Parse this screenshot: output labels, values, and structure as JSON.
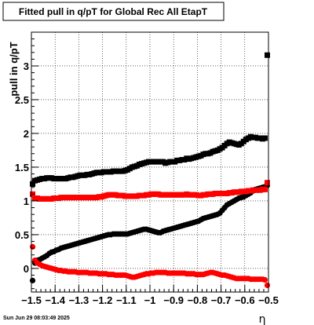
{
  "chart_data": {
    "type": "scatter",
    "title": "Fitted pull in q/pT for Global Rec All EtapT",
    "ylabel": "pull in q/pT",
    "xlabel": "η",
    "xlim": [
      -1.5,
      -0.5
    ],
    "ylim": [
      -0.35,
      3.5
    ],
    "x_ticks": [
      -1.5,
      -1.4,
      -1.3,
      -1.2,
      -1.1,
      -1,
      -0.9,
      -0.8,
      -0.7,
      -0.6,
      -0.5
    ],
    "x_tick_labels": [
      "−1.5",
      "−1.4",
      "−1.3",
      "−1.2",
      "−1.1",
      "−1",
      "−0.9",
      "−0.8",
      "−0.7",
      "−0.6",
      "−0.5"
    ],
    "y_ticks": [
      0,
      0.5,
      1,
      1.5,
      2,
      2.5,
      3
    ],
    "y_tick_labels": [
      "0",
      "0.5",
      "1",
      "1.5",
      "2",
      "2.5",
      "3"
    ],
    "grid": true,
    "series": [
      {
        "marker": "square",
        "color": "#000000",
        "x": [
          -1.495,
          -1.485,
          -1.475,
          -1.465,
          -1.455,
          -1.445,
          -1.435,
          -1.425,
          -1.415,
          -1.405,
          -1.395,
          -1.385,
          -1.375,
          -1.365,
          -1.355,
          -1.345,
          -1.335,
          -1.325,
          -1.315,
          -1.305,
          -1.295,
          -1.285,
          -1.275,
          -1.265,
          -1.255,
          -1.245,
          -1.235,
          -1.225,
          -1.215,
          -1.205,
          -1.195,
          -1.185,
          -1.175,
          -1.165,
          -1.155,
          -1.145,
          -1.135,
          -1.125,
          -1.115,
          -1.105,
          -1.095,
          -1.085,
          -1.075,
          -1.065,
          -1.055,
          -1.045,
          -1.035,
          -1.025,
          -1.015,
          -1.005,
          -0.995,
          -0.985,
          -0.975,
          -0.965,
          -0.955,
          -0.945,
          -0.935,
          -0.925,
          -0.915,
          -0.905,
          -0.895,
          -0.885,
          -0.875,
          -0.865,
          -0.855,
          -0.845,
          -0.835,
          -0.825,
          -0.815,
          -0.805,
          -0.795,
          -0.785,
          -0.775,
          -0.765,
          -0.755,
          -0.745,
          -0.735,
          -0.725,
          -0.715,
          -0.705,
          -0.695,
          -0.685,
          -0.675,
          -0.665,
          -0.655,
          -0.645,
          -0.635,
          -0.625,
          -0.615,
          -0.605,
          -0.595,
          -0.585,
          -0.575,
          -0.565,
          -0.555,
          -0.545,
          -0.535,
          -0.525,
          -0.515,
          -0.505
        ],
        "y": [
          1.25,
          1.3,
          1.31,
          1.32,
          1.33,
          1.33,
          1.34,
          1.34,
          1.34,
          1.33,
          1.33,
          1.33,
          1.33,
          1.33,
          1.33,
          1.34,
          1.35,
          1.35,
          1.36,
          1.37,
          1.38,
          1.38,
          1.38,
          1.39,
          1.39,
          1.4,
          1.41,
          1.42,
          1.42,
          1.42,
          1.43,
          1.43,
          1.43,
          1.43,
          1.44,
          1.44,
          1.44,
          1.44,
          1.44,
          1.45,
          1.46,
          1.48,
          1.5,
          1.51,
          1.52,
          1.54,
          1.55,
          1.56,
          1.57,
          1.58,
          1.58,
          1.58,
          1.58,
          1.58,
          1.58,
          1.58,
          1.56,
          1.57,
          1.58,
          1.58,
          1.58,
          1.6,
          1.6,
          1.61,
          1.61,
          1.63,
          1.62,
          1.63,
          1.64,
          1.65,
          1.66,
          1.67,
          1.69,
          1.7,
          1.7,
          1.71,
          1.73,
          1.74,
          1.75,
          1.77,
          1.79,
          1.82,
          1.85,
          1.87,
          1.86,
          1.85,
          1.84,
          1.83,
          1.85,
          1.88,
          1.91,
          1.93,
          1.95,
          1.94,
          1.94,
          1.93,
          1.93,
          1.92,
          1.93,
          3.16
        ]
      },
      {
        "marker": "circle",
        "color": "#000000",
        "x": [
          -1.495,
          -1.485,
          -1.475,
          -1.465,
          -1.455,
          -1.445,
          -1.435,
          -1.425,
          -1.415,
          -1.405,
          -1.395,
          -1.385,
          -1.375,
          -1.365,
          -1.355,
          -1.345,
          -1.335,
          -1.325,
          -1.315,
          -1.305,
          -1.295,
          -1.285,
          -1.275,
          -1.265,
          -1.255,
          -1.245,
          -1.235,
          -1.225,
          -1.215,
          -1.205,
          -1.195,
          -1.185,
          -1.175,
          -1.165,
          -1.155,
          -1.145,
          -1.135,
          -1.125,
          -1.115,
          -1.105,
          -1.095,
          -1.085,
          -1.075,
          -1.065,
          -1.055,
          -1.045,
          -1.035,
          -1.025,
          -1.015,
          -1.005,
          -0.995,
          -0.985,
          -0.975,
          -0.965,
          -0.955,
          -0.945,
          -0.935,
          -0.925,
          -0.915,
          -0.905,
          -0.895,
          -0.885,
          -0.875,
          -0.865,
          -0.855,
          -0.845,
          -0.835,
          -0.825,
          -0.815,
          -0.805,
          -0.795,
          -0.785,
          -0.775,
          -0.765,
          -0.755,
          -0.745,
          -0.735,
          -0.725,
          -0.715,
          -0.705,
          -0.695,
          -0.685,
          -0.675,
          -0.665,
          -0.655,
          -0.645,
          -0.635,
          -0.625,
          -0.615,
          -0.605,
          -0.595,
          -0.585,
          -0.575,
          -0.565,
          -0.555,
          -0.545,
          -0.535,
          -0.525,
          -0.515,
          -0.505
        ],
        "y": [
          -0.18,
          0.08,
          0.12,
          0.13,
          0.15,
          0.17,
          0.19,
          0.22,
          0.24,
          0.25,
          0.27,
          0.28,
          0.3,
          0.31,
          0.32,
          0.33,
          0.34,
          0.35,
          0.36,
          0.37,
          0.38,
          0.39,
          0.4,
          0.41,
          0.42,
          0.43,
          0.44,
          0.45,
          0.46,
          0.47,
          0.48,
          0.49,
          0.5,
          0.5,
          0.51,
          0.51,
          0.51,
          0.51,
          0.51,
          0.51,
          0.51,
          0.52,
          0.53,
          0.54,
          0.55,
          0.56,
          0.57,
          0.58,
          0.58,
          0.57,
          0.56,
          0.55,
          0.54,
          0.53,
          0.53,
          0.55,
          0.56,
          0.57,
          0.58,
          0.59,
          0.6,
          0.61,
          0.62,
          0.63,
          0.64,
          0.65,
          0.66,
          0.67,
          0.68,
          0.69,
          0.7,
          0.72,
          0.74,
          0.75,
          0.76,
          0.77,
          0.78,
          0.79,
          0.8,
          0.82,
          0.86,
          0.9,
          0.94,
          0.96,
          0.98,
          1.0,
          1.02,
          1.04,
          1.05,
          1.06,
          1.08,
          1.1,
          1.12,
          1.15,
          1.17,
          1.18,
          1.19,
          1.2,
          1.21,
          1.23
        ]
      },
      {
        "marker": "square",
        "color": "#ff0000",
        "x": [
          -1.495,
          -1.485,
          -1.475,
          -1.465,
          -1.455,
          -1.445,
          -1.435,
          -1.425,
          -1.415,
          -1.405,
          -1.395,
          -1.385,
          -1.375,
          -1.365,
          -1.355,
          -1.345,
          -1.335,
          -1.325,
          -1.315,
          -1.305,
          -1.295,
          -1.285,
          -1.275,
          -1.265,
          -1.255,
          -1.245,
          -1.235,
          -1.225,
          -1.215,
          -1.205,
          -1.195,
          -1.185,
          -1.175,
          -1.165,
          -1.155,
          -1.145,
          -1.135,
          -1.125,
          -1.115,
          -1.105,
          -1.095,
          -1.085,
          -1.075,
          -1.065,
          -1.055,
          -1.045,
          -1.035,
          -1.025,
          -1.015,
          -1.005,
          -0.995,
          -0.985,
          -0.975,
          -0.965,
          -0.955,
          -0.945,
          -0.935,
          -0.925,
          -0.915,
          -0.905,
          -0.895,
          -0.885,
          -0.875,
          -0.865,
          -0.855,
          -0.845,
          -0.835,
          -0.825,
          -0.815,
          -0.805,
          -0.795,
          -0.785,
          -0.775,
          -0.765,
          -0.755,
          -0.745,
          -0.735,
          -0.725,
          -0.715,
          -0.705,
          -0.695,
          -0.685,
          -0.675,
          -0.665,
          -0.655,
          -0.645,
          -0.635,
          -0.625,
          -0.615,
          -0.605,
          -0.595,
          -0.585,
          -0.575,
          -0.565,
          -0.555,
          -0.545,
          -0.535,
          -0.525,
          -0.515,
          -0.505
        ],
        "y": [
          1.1,
          1.04,
          1.04,
          1.03,
          1.03,
          1.03,
          1.03,
          1.03,
          1.03,
          1.04,
          1.04,
          1.04,
          1.05,
          1.05,
          1.05,
          1.05,
          1.05,
          1.05,
          1.05,
          1.05,
          1.05,
          1.05,
          1.05,
          1.05,
          1.05,
          1.05,
          1.05,
          1.05,
          1.06,
          1.06,
          1.07,
          1.08,
          1.09,
          1.09,
          1.09,
          1.09,
          1.08,
          1.08,
          1.08,
          1.07,
          1.07,
          1.07,
          1.07,
          1.07,
          1.07,
          1.08,
          1.08,
          1.08,
          1.09,
          1.09,
          1.1,
          1.1,
          1.1,
          1.1,
          1.09,
          1.09,
          1.09,
          1.09,
          1.09,
          1.09,
          1.09,
          1.09,
          1.09,
          1.09,
          1.09,
          1.1,
          1.09,
          1.09,
          1.09,
          1.09,
          1.08,
          1.08,
          1.09,
          1.09,
          1.1,
          1.1,
          1.1,
          1.11,
          1.11,
          1.11,
          1.11,
          1.11,
          1.11,
          1.12,
          1.12,
          1.13,
          1.13,
          1.13,
          1.14,
          1.14,
          1.14,
          1.15,
          1.15,
          1.16,
          1.16,
          1.16,
          1.16,
          1.17,
          1.17,
          1.27
        ]
      },
      {
        "marker": "circle",
        "color": "#ff0000",
        "x": [
          -1.495,
          -1.485,
          -1.475,
          -1.465,
          -1.455,
          -1.445,
          -1.435,
          -1.425,
          -1.415,
          -1.405,
          -1.395,
          -1.385,
          -1.375,
          -1.365,
          -1.355,
          -1.345,
          -1.335,
          -1.325,
          -1.315,
          -1.305,
          -1.295,
          -1.285,
          -1.275,
          -1.265,
          -1.255,
          -1.245,
          -1.235,
          -1.225,
          -1.215,
          -1.205,
          -1.195,
          -1.185,
          -1.175,
          -1.165,
          -1.155,
          -1.145,
          -1.135,
          -1.125,
          -1.115,
          -1.105,
          -1.095,
          -1.085,
          -1.075,
          -1.065,
          -1.055,
          -1.045,
          -1.035,
          -1.025,
          -1.015,
          -1.005,
          -0.995,
          -0.985,
          -0.975,
          -0.965,
          -0.955,
          -0.945,
          -0.935,
          -0.925,
          -0.915,
          -0.905,
          -0.895,
          -0.885,
          -0.875,
          -0.865,
          -0.855,
          -0.845,
          -0.835,
          -0.825,
          -0.815,
          -0.805,
          -0.795,
          -0.785,
          -0.775,
          -0.765,
          -0.755,
          -0.745,
          -0.735,
          -0.725,
          -0.715,
          -0.705,
          -0.695,
          -0.685,
          -0.675,
          -0.665,
          -0.655,
          -0.645,
          -0.635,
          -0.625,
          -0.615,
          -0.605,
          -0.595,
          -0.585,
          -0.575,
          -0.565,
          -0.555,
          -0.545,
          -0.535,
          -0.525,
          -0.515,
          -0.505
        ],
        "y": [
          0.32,
          0.12,
          0.08,
          0.06,
          0.04,
          0.03,
          0.02,
          0.01,
          0.0,
          -0.01,
          -0.02,
          -0.03,
          -0.03,
          -0.04,
          -0.04,
          -0.05,
          -0.05,
          -0.05,
          -0.05,
          -0.06,
          -0.06,
          -0.06,
          -0.06,
          -0.06,
          -0.07,
          -0.07,
          -0.07,
          -0.07,
          -0.08,
          -0.08,
          -0.08,
          -0.08,
          -0.09,
          -0.09,
          -0.09,
          -0.1,
          -0.1,
          -0.1,
          -0.1,
          -0.1,
          -0.11,
          -0.12,
          -0.13,
          -0.13,
          -0.12,
          -0.11,
          -0.1,
          -0.09,
          -0.08,
          -0.08,
          -0.07,
          -0.07,
          -0.06,
          -0.06,
          -0.06,
          -0.06,
          -0.06,
          -0.07,
          -0.07,
          -0.07,
          -0.07,
          -0.07,
          -0.07,
          -0.07,
          -0.07,
          -0.08,
          -0.08,
          -0.08,
          -0.08,
          -0.09,
          -0.09,
          -0.09,
          -0.09,
          -0.08,
          -0.07,
          -0.06,
          -0.06,
          -0.07,
          -0.08,
          -0.09,
          -0.1,
          -0.1,
          -0.11,
          -0.12,
          -0.13,
          -0.14,
          -0.15,
          -0.15,
          -0.15,
          -0.15,
          -0.15,
          -0.15,
          -0.16,
          -0.16,
          -0.16,
          -0.16,
          -0.16,
          -0.16,
          -0.17,
          -0.25
        ]
      }
    ]
  },
  "footer": {
    "timestamp": "Sun Jun 29 08:03:49 2025"
  }
}
